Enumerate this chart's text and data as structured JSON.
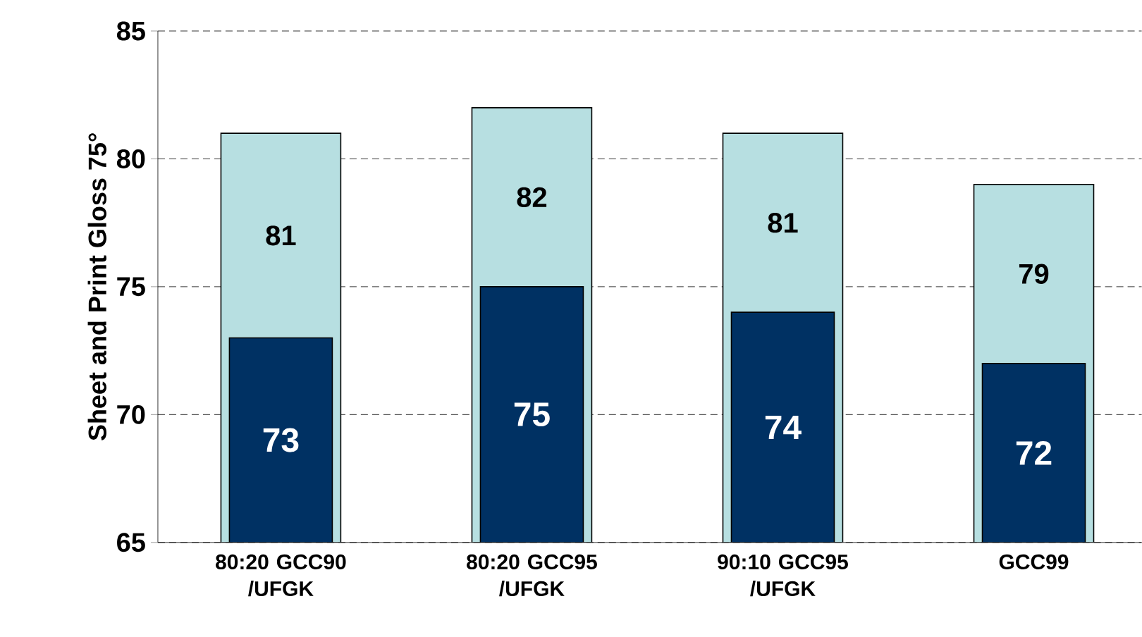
{
  "chart_data": {
    "type": "bar",
    "ylabel": "Sheet and Print Gloss 75°",
    "categories": [
      "80:20 GCC90 /UFGK",
      "80:20 GCC95 /UFGK",
      "90:10 GCC95 /UFGK",
      "GCC99"
    ],
    "series": [
      {
        "color": "#b7dfe1",
        "values": [
          81,
          82,
          81,
          79
        ]
      },
      {
        "color": "#003163",
        "values": [
          73,
          75,
          74,
          72
        ]
      }
    ],
    "ylim": [
      65,
      85
    ],
    "yticks": [
      65,
      70,
      75,
      80,
      85
    ],
    "grid": "y",
    "data_labels": true
  }
}
